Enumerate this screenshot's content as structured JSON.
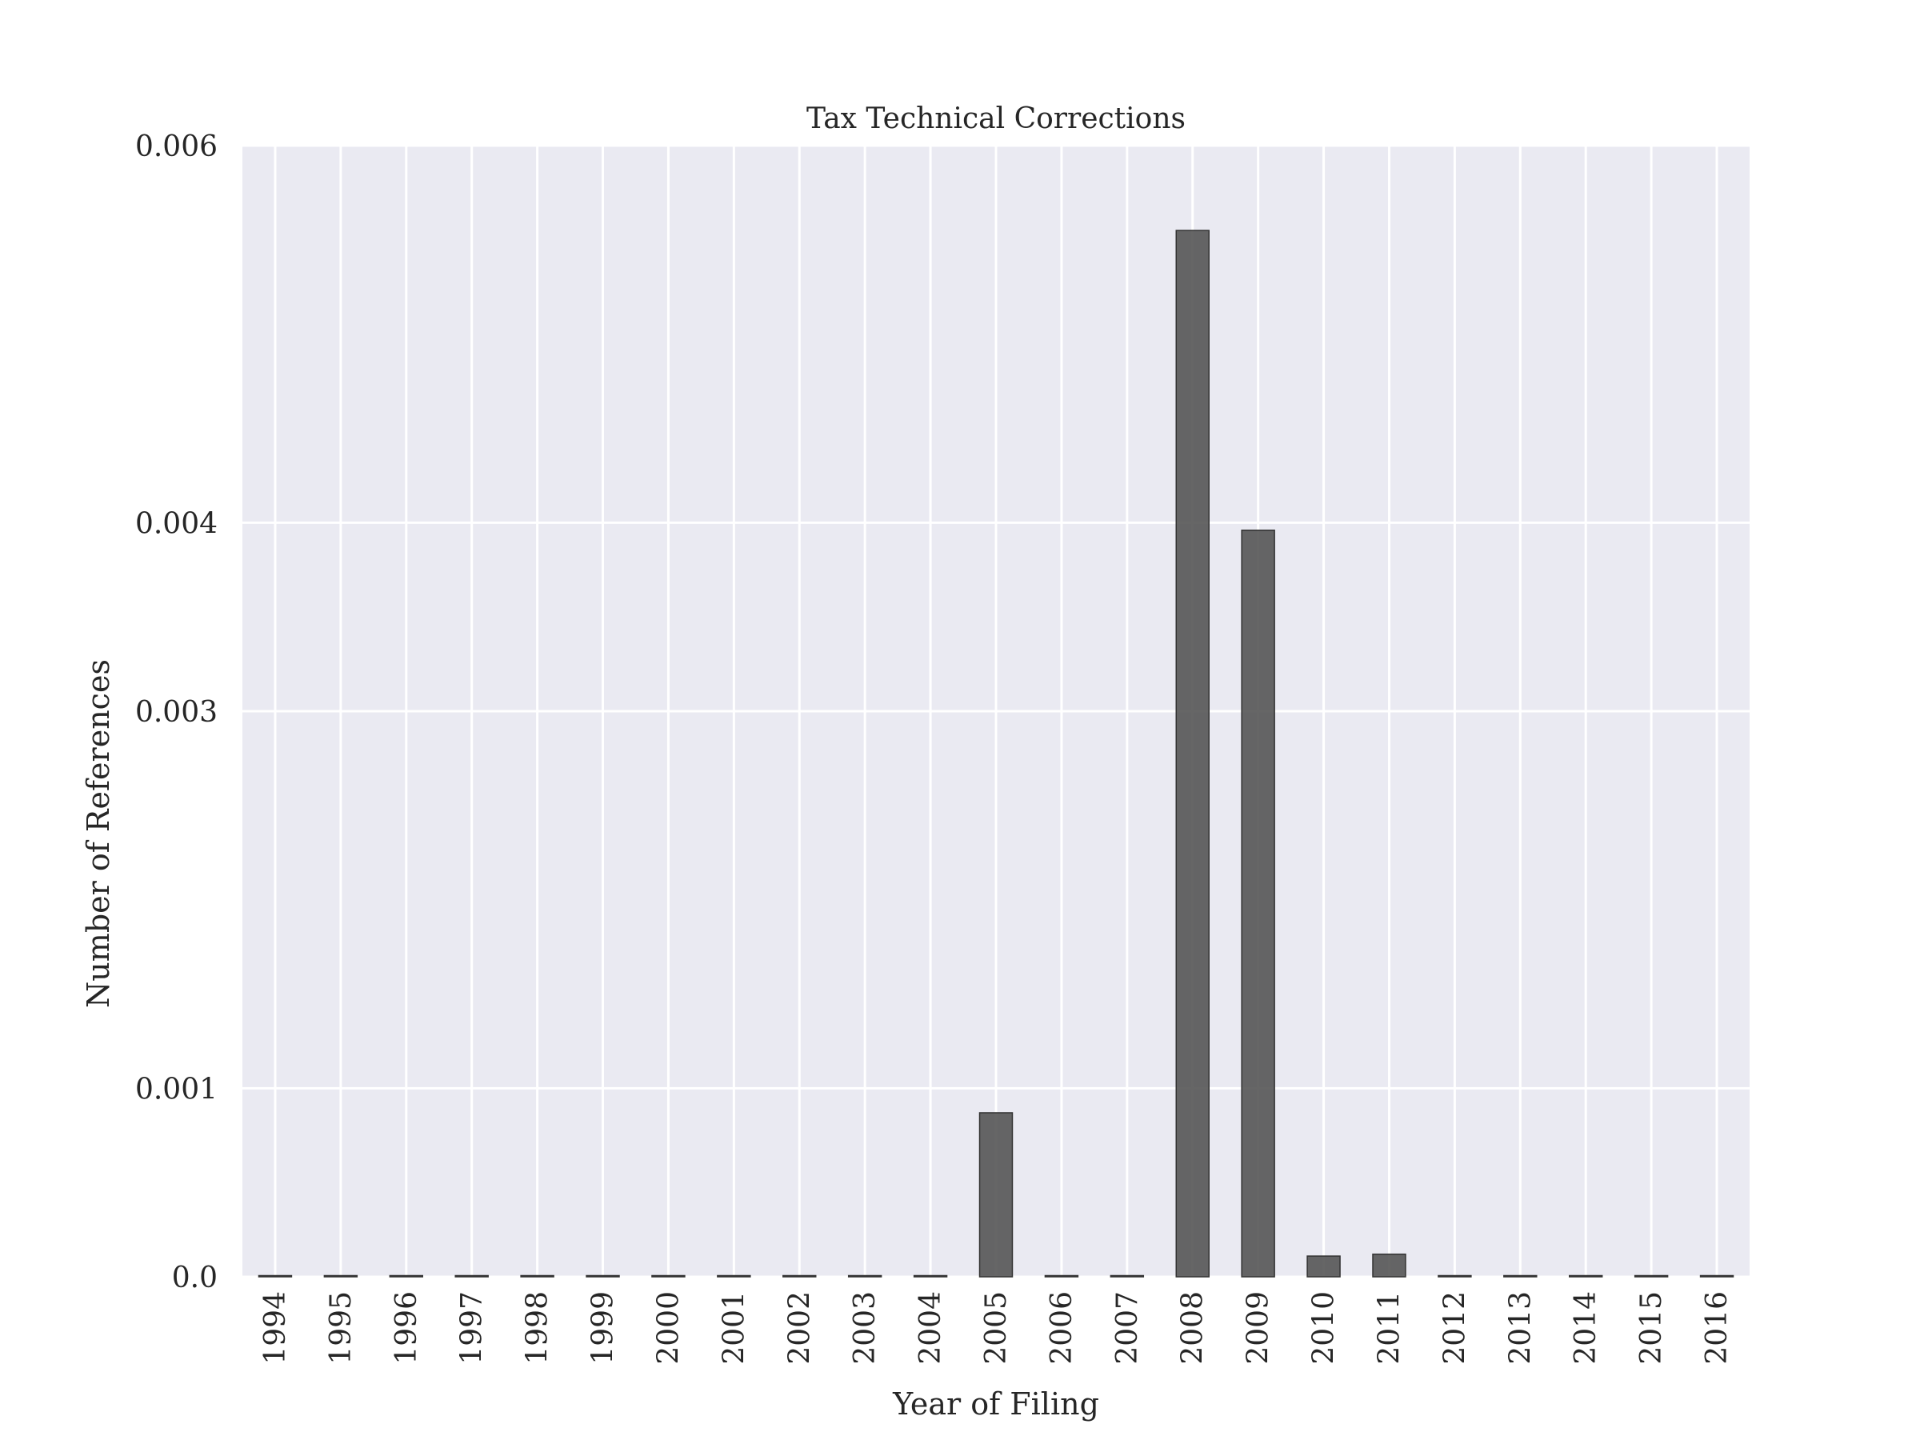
{
  "chart_data": {
    "type": "bar",
    "title": "Tax Technical Corrections",
    "xlabel": "Year of Filing",
    "ylabel": "Number of References",
    "categories": [
      "1994",
      "1995",
      "1996",
      "1997",
      "1998",
      "1999",
      "2000",
      "2001",
      "2002",
      "2003",
      "2004",
      "2005",
      "2006",
      "2007",
      "2008",
      "2009",
      "2010",
      "2011",
      "2012",
      "2013",
      "2014",
      "2015",
      "2016"
    ],
    "values": [
      0,
      0,
      0,
      0,
      0,
      0,
      0,
      0,
      0,
      0,
      0,
      0.00087,
      0,
      0,
      0.00555,
      0.00396,
      0.00011,
      0.00012,
      0,
      0,
      0,
      0,
      0
    ],
    "ylim": [
      0,
      0.006
    ],
    "yticks": [
      0.0,
      0.001,
      0.003,
      0.004,
      0.006
    ],
    "ytick_labels": [
      "0.0",
      "0.001",
      "0.003",
      "0.004",
      "0.006"
    ],
    "grid": true,
    "colors": {
      "plot_background": "#eaeaf2",
      "grid": "#ffffff",
      "bar_fill": "#555555",
      "bar_edge": "#333333",
      "text": "#262626"
    }
  }
}
